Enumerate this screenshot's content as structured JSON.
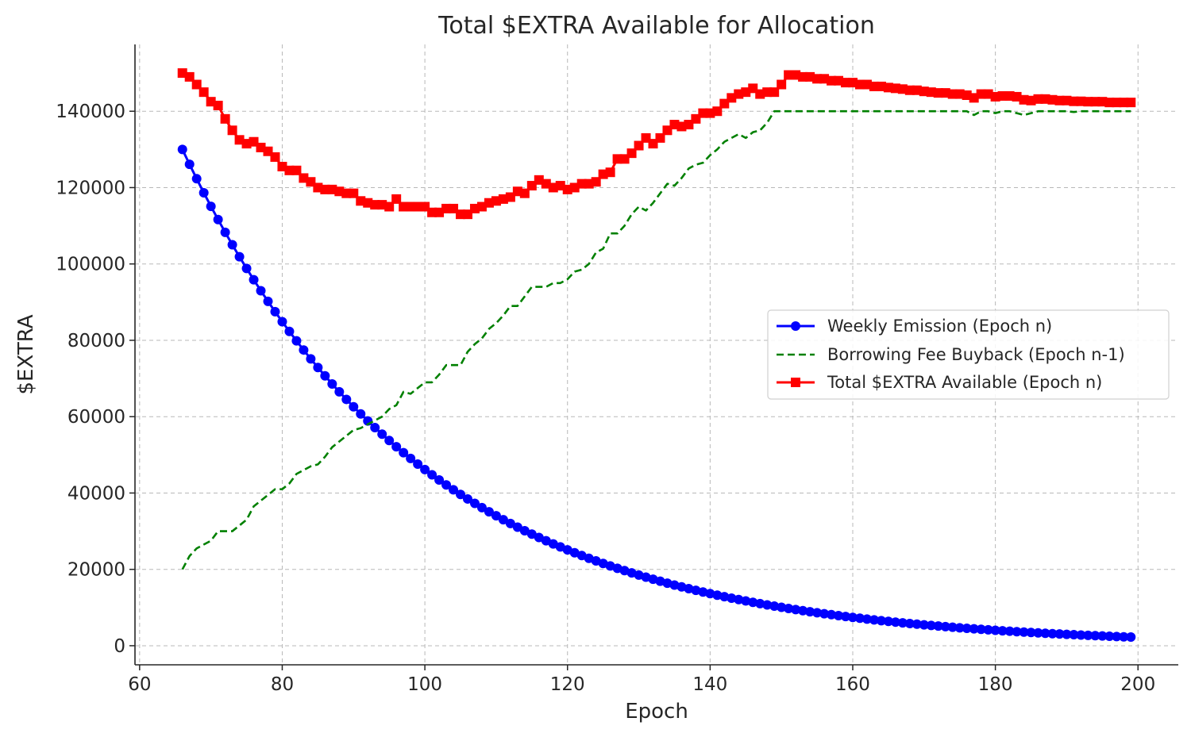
{
  "chart_data": {
    "type": "line",
    "title": "Total $EXTRA Available for Allocation",
    "xlabel": "Epoch",
    "ylabel": "$EXTRA",
    "xlim": [
      59.35,
      205.65
    ],
    "ylim": [
      -5000,
      157500
    ],
    "xticks": [
      60,
      80,
      100,
      120,
      140,
      160,
      180,
      200
    ],
    "yticks": [
      0,
      20000,
      40000,
      60000,
      80000,
      100000,
      120000,
      140000
    ],
    "grid": true,
    "legend_position": "center-right",
    "x": [
      66,
      67,
      68,
      69,
      70,
      71,
      72,
      73,
      74,
      75,
      76,
      77,
      78,
      79,
      80,
      81,
      82,
      83,
      84,
      85,
      86,
      87,
      88,
      89,
      90,
      91,
      92,
      93,
      94,
      95,
      96,
      97,
      98,
      99,
      100,
      101,
      102,
      103,
      104,
      105,
      106,
      107,
      108,
      109,
      110,
      111,
      112,
      113,
      114,
      115,
      116,
      117,
      118,
      119,
      120,
      121,
      122,
      123,
      124,
      125,
      126,
      127,
      128,
      129,
      130,
      131,
      132,
      133,
      134,
      135,
      136,
      137,
      138,
      139,
      140,
      141,
      142,
      143,
      144,
      145,
      146,
      147,
      148,
      149,
      150,
      151,
      152,
      153,
      154,
      155,
      156,
      157,
      158,
      159,
      160,
      161,
      162,
      163,
      164,
      165,
      166,
      167,
      168,
      169,
      170,
      171,
      172,
      173,
      174,
      175,
      176,
      177,
      178,
      179,
      180,
      181,
      182,
      183,
      184,
      185,
      186,
      187,
      188,
      189,
      190,
      191,
      192,
      193,
      194,
      195,
      196,
      197,
      198,
      199
    ],
    "series": [
      {
        "name": "Weekly Emission (Epoch n)",
        "color": "#0000ff",
        "style": "solid",
        "marker": "circle",
        "values": [
          130000,
          126100,
          122317,
          118648,
          115088,
          111636,
          108286,
          105038,
          101886,
          98830,
          95865,
          92989,
          90199,
          87493,
          84868,
          82322,
          79853,
          77457,
          75133,
          72879,
          70693,
          68572,
          66515,
          64520,
          62584,
          60706,
          58885,
          57119,
          55405,
          53743,
          52131,
          50567,
          49050,
          47578,
          46151,
          44766,
          43423,
          42120,
          40857,
          39631,
          38442,
          37289,
          36170,
          35085,
          34032,
          33011,
          32021,
          31060,
          30128,
          29224,
          28348,
          27497,
          26672,
          25872,
          25096,
          24343,
          23613,
          22904,
          22217,
          21551,
          20904,
          20277,
          19669,
          19079,
          18506,
          17951,
          17412,
          16890,
          16383,
          15892,
          15415,
          14953,
          14504,
          14069,
          13647,
          13238,
          12841,
          12455,
          12082,
          11719,
          11368,
          11027,
          10696,
          10375,
          10064,
          9762,
          9469,
          9185,
          8909,
          8642,
          8383,
          8131,
          7887,
          7651,
          7421,
          7199,
          6983,
          6773,
          6570,
          6373,
          6182,
          5996,
          5816,
          5642,
          5472,
          5308,
          5149,
          4995,
          4845,
          4700,
          4559,
          4422,
          4289,
          4161,
          4036,
          3915,
          3797,
          3683,
          3573,
          3466,
          3362,
          3261,
          3163,
          3068,
          2976,
          2887,
          2800,
          2716,
          2635,
          2556,
          2479,
          2405,
          2333,
          2263
        ]
      },
      {
        "name": "Borrowing Fee Buyback (Epoch n-1)",
        "color": "#008000",
        "style": "dashed",
        "marker": "none",
        "values": [
          20000,
          23500,
          25500,
          26500,
          27500,
          30000,
          30000,
          30000,
          31500,
          33000,
          36500,
          38000,
          39500,
          41000,
          41000,
          42500,
          45000,
          46000,
          47000,
          47500,
          49500,
          52000,
          53500,
          55000,
          56500,
          57000,
          58000,
          59000,
          60000,
          62000,
          63000,
          66500,
          66000,
          67500,
          69000,
          69000,
          71000,
          73500,
          73500,
          73500,
          77000,
          79000,
          80500,
          83000,
          84500,
          86500,
          89000,
          89000,
          91500,
          94000,
          94000,
          94000,
          95000,
          95000,
          96000,
          98000,
          98500,
          100000,
          103000,
          104000,
          108000,
          108000,
          110000,
          113000,
          115000,
          114000,
          116000,
          118500,
          121000,
          120500,
          122500,
          125000,
          126000,
          126500,
          128500,
          130000,
          132000,
          133000,
          134000,
          133000,
          134500,
          135000,
          137000,
          140000,
          140000,
          140000,
          140000,
          140000,
          140000,
          140000,
          140000,
          140000,
          140000,
          140000,
          140000,
          140000,
          140000,
          140000,
          140000,
          140000,
          140000,
          140000,
          140000,
          140000,
          140000,
          140000,
          140000,
          140000,
          140000,
          140000,
          140000,
          139000,
          140000,
          140000,
          139500,
          140000,
          140000,
          139500,
          139000,
          139500,
          140000,
          140000,
          140000,
          140000,
          140000,
          139800,
          140000,
          140000,
          140000,
          140000,
          140000,
          140000,
          140000,
          140000
        ]
      },
      {
        "name": "Total $EXTRA Available (Epoch n)",
        "color": "#ff0000",
        "style": "solid",
        "marker": "square",
        "values": [
          150000,
          149000,
          147000,
          145000,
          142500,
          141500,
          138000,
          135000,
          132500,
          131500,
          132000,
          130500,
          129500,
          128000,
          125500,
          124500,
          124500,
          122500,
          121500,
          120000,
          119500,
          119500,
          119000,
          118500,
          118500,
          116500,
          116000,
          115500,
          115500,
          115000,
          117000,
          115000,
          115000,
          115000,
          115000,
          113500,
          113500,
          114500,
          114500,
          113000,
          113000,
          114500,
          115000,
          116000,
          116500,
          117000,
          117500,
          119000,
          118500,
          120500,
          122000,
          121000,
          120000,
          120500,
          119500,
          120000,
          121000,
          121000,
          121500,
          123500,
          124000,
          127500,
          127500,
          129000,
          131000,
          133000,
          131500,
          133000,
          135000,
          136500,
          136000,
          136500,
          138000,
          139500,
          139500,
          140000,
          142000,
          143500,
          144500,
          145000,
          146000,
          144500,
          145000,
          145000,
          147000,
          149500,
          149500,
          149000,
          149000,
          148500,
          148500,
          148000,
          148000,
          147500,
          147500,
          147000,
          147000,
          146500,
          146500,
          146200,
          146000,
          145800,
          145500,
          145500,
          145200,
          145000,
          144800,
          144800,
          144500,
          144500,
          144200,
          143500,
          144500,
          144500,
          143800,
          144000,
          144000,
          143800,
          143000,
          142800,
          143200,
          143200,
          143000,
          142800,
          142800,
          142600,
          142600,
          142500,
          142500,
          142500,
          142300,
          142300,
          142300,
          142300
        ]
      }
    ]
  }
}
